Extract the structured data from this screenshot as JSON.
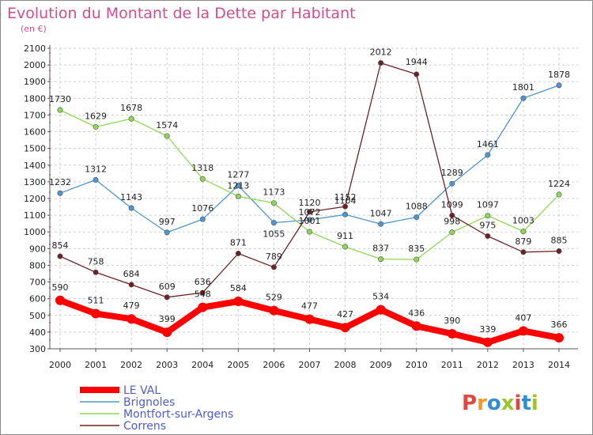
{
  "chart_data": {
    "type": "line",
    "title": "Evolution du Montant de la Dette par Habitant",
    "subtitle": "(en €)",
    "x": [
      "2000",
      "2001",
      "2002",
      "2003",
      "2004",
      "2005",
      "2006",
      "2007",
      "2008",
      "2009",
      "2010",
      "2011",
      "2012",
      "2013",
      "2014"
    ],
    "yticks": [
      300,
      400,
      500,
      600,
      700,
      800,
      900,
      1000,
      1100,
      1200,
      1300,
      1400,
      1500,
      1600,
      1700,
      1800,
      1900,
      2000,
      2100
    ],
    "ylim": [
      300,
      2100
    ],
    "grid": true,
    "legend_position": "bottom-left",
    "series": [
      {
        "name": "LE VAL",
        "color": "#ff0000",
        "values": [
          590,
          511,
          479,
          399,
          548,
          584,
          529,
          477,
          427,
          534,
          436,
          390,
          339,
          407,
          366
        ]
      },
      {
        "name": "Brignoles",
        "color": "#4f95cf",
        "values": [
          1232,
          1312,
          1143,
          997,
          1076,
          1277,
          1055,
          1072,
          1104,
          1047,
          1088,
          1289,
          1461,
          1801,
          1878
        ]
      },
      {
        "name": "Montfort-sur-Argens",
        "color": "#8fd855",
        "values": [
          1730,
          1629,
          1678,
          1574,
          1318,
          1213,
          1173,
          1001,
          911,
          837,
          835,
          998,
          1097,
          1003,
          1224
        ]
      },
      {
        "name": "Correns",
        "color": "#6b2223",
        "values": [
          854,
          758,
          684,
          609,
          636,
          871,
          789,
          1120,
          1152,
          2012,
          1944,
          1099,
          975,
          879,
          885
        ]
      }
    ]
  },
  "brand": {
    "text": "Proxiti",
    "colors": [
      "#e4463f",
      "#f29a20",
      "#2f8fce",
      "#9bc52a",
      "#e4463f",
      "#2f8fce",
      "#9bc52a"
    ]
  }
}
